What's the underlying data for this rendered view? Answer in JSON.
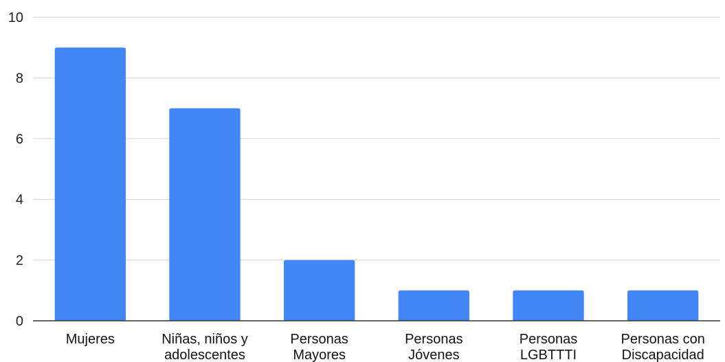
{
  "chart_data": {
    "type": "bar",
    "categories": [
      [
        "Mujeres"
      ],
      [
        "Niñas, niños y",
        "adolescentes"
      ],
      [
        "Personas",
        "Mayores"
      ],
      [
        "Personas",
        "Jóvenes"
      ],
      [
        "Personas",
        "LGBTTTI"
      ],
      [
        "Personas con",
        "Discapacidad"
      ]
    ],
    "values": [
      9,
      7,
      2,
      1,
      1,
      1
    ],
    "ylim": [
      0,
      10
    ],
    "yticks": [
      0,
      2,
      4,
      6,
      8,
      10
    ],
    "grid": true,
    "legend": "none",
    "title": "",
    "xlabel": "",
    "ylabel": ""
  },
  "colors": {
    "bar": "#4285f4",
    "grid": "#d9d9d9",
    "axis": "#333333",
    "text": "#222222"
  }
}
